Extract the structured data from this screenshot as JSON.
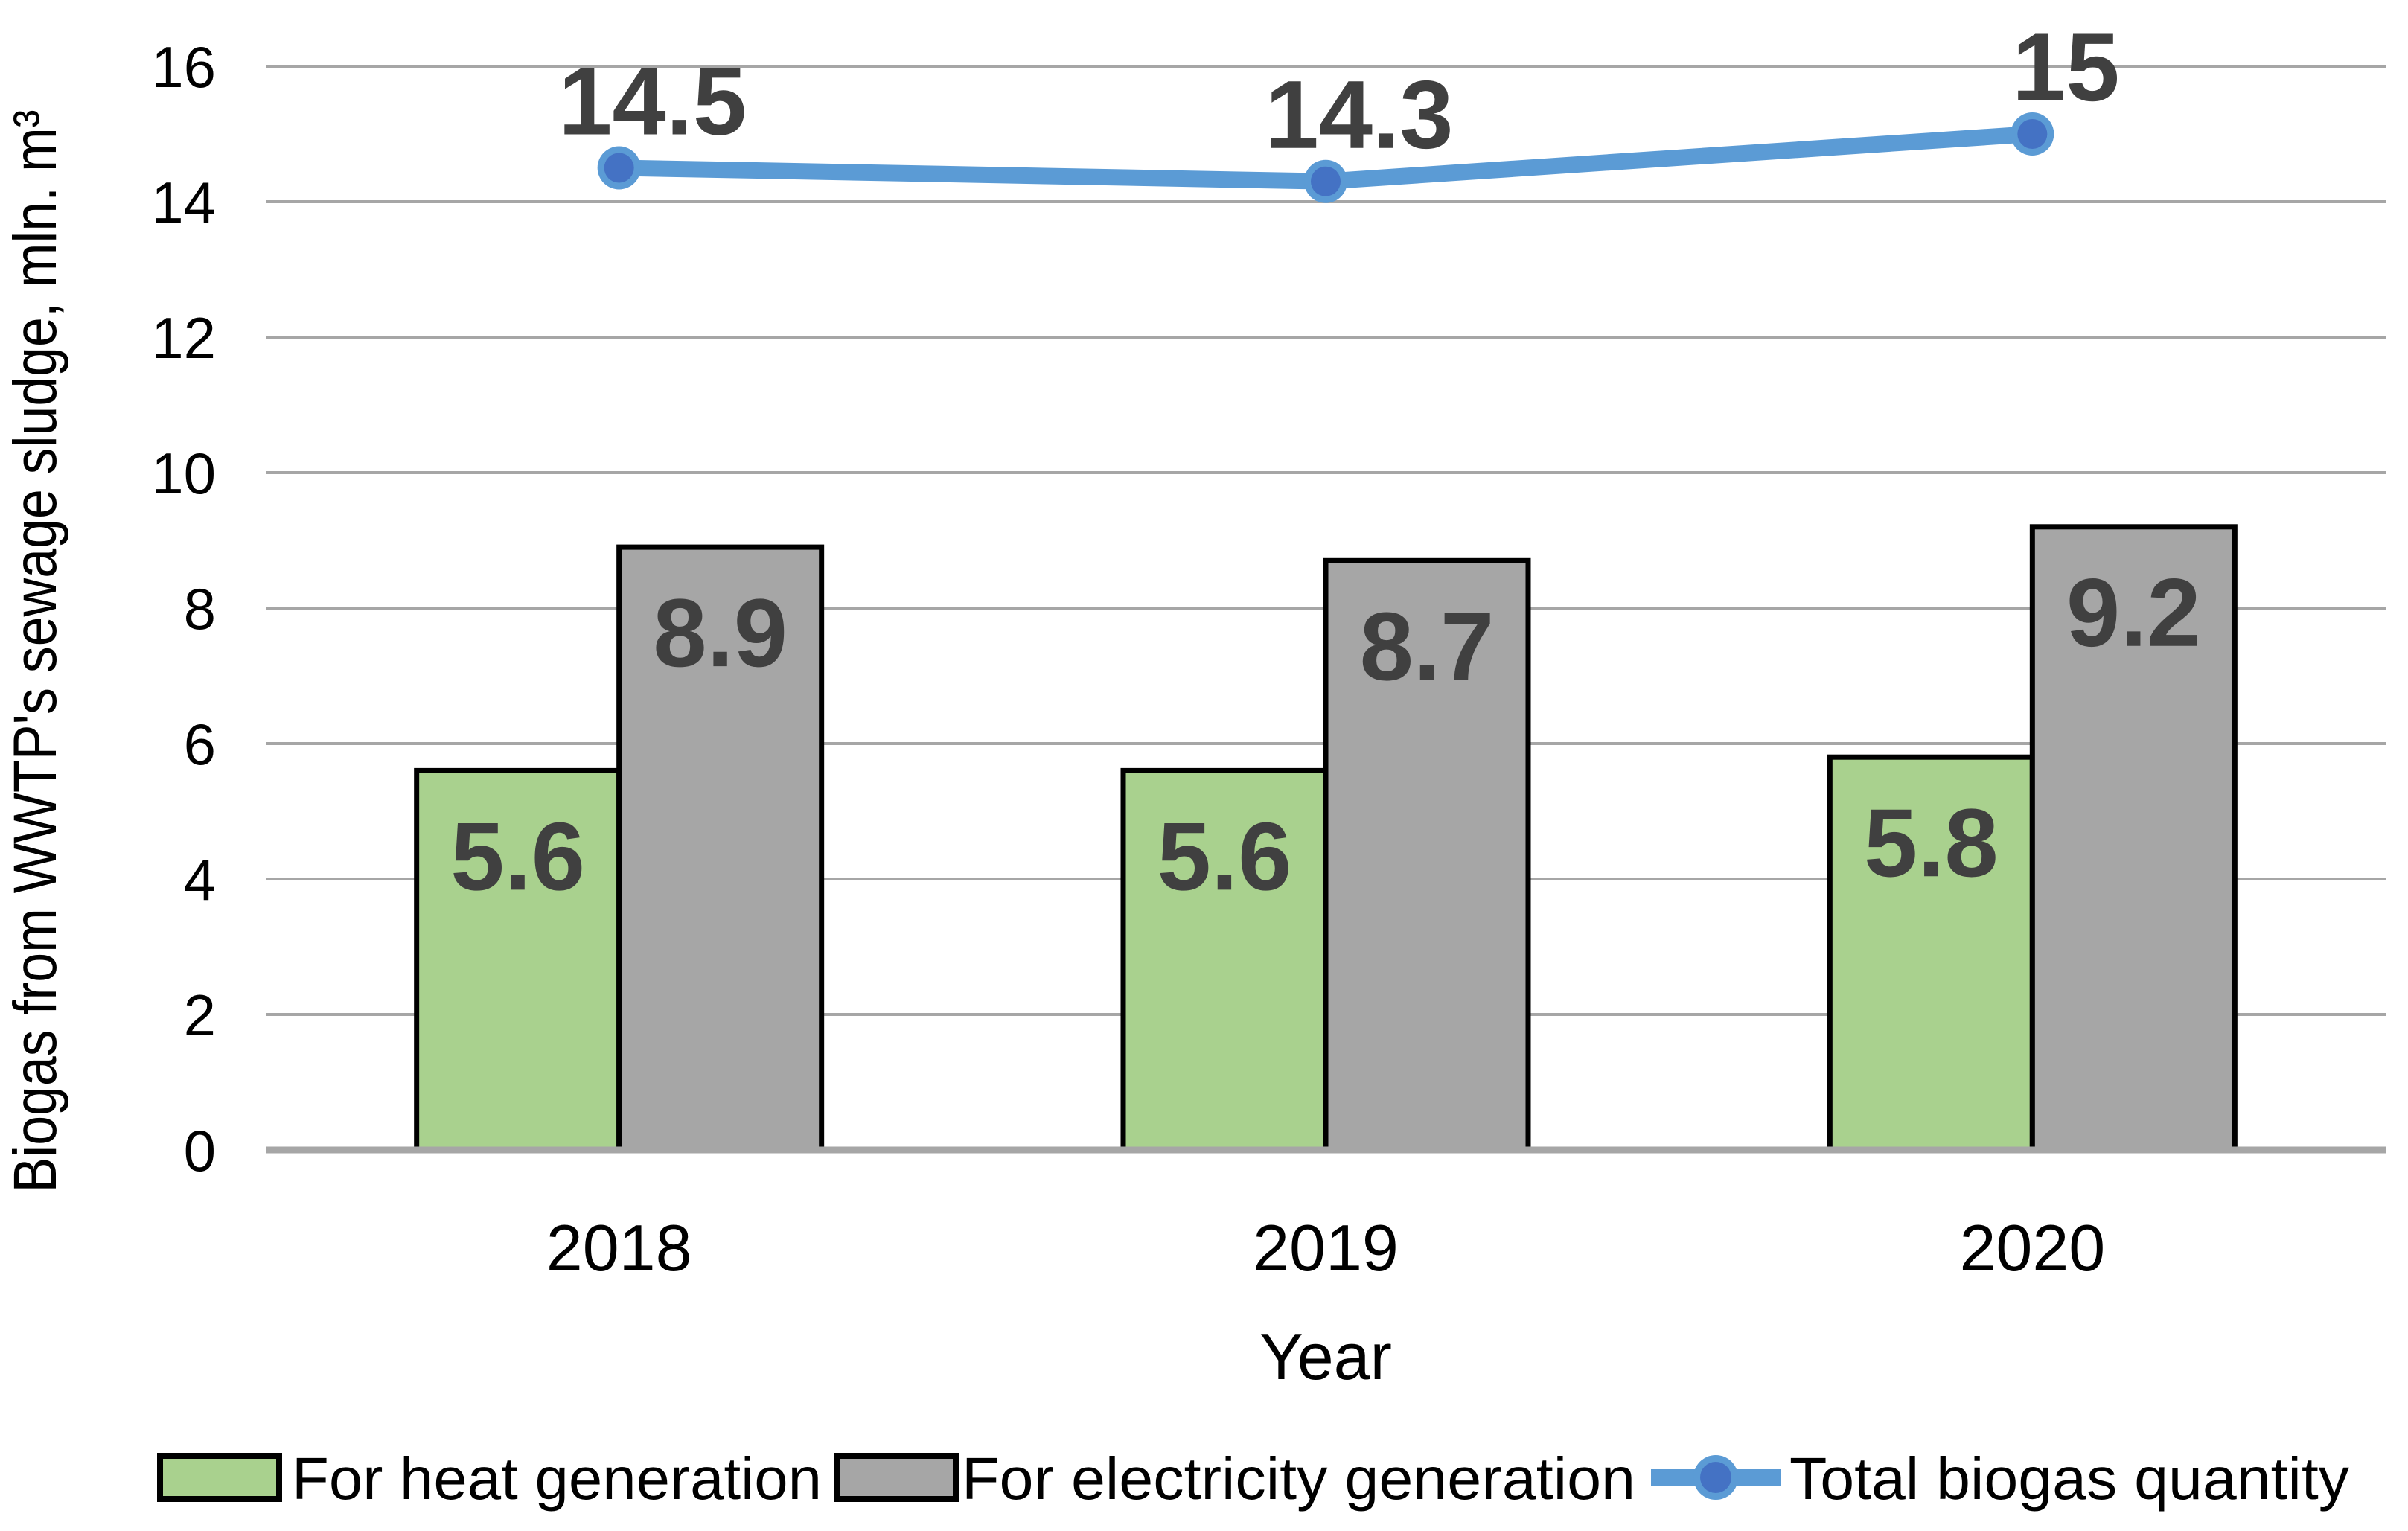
{
  "chart_data": {
    "type": "combo-bar-line",
    "categories": [
      "2018",
      "2019",
      "2020"
    ],
    "series": [
      {
        "name": "For heat generation",
        "type": "bar",
        "values": [
          5.6,
          5.6,
          5.8
        ],
        "labels": [
          "5.6",
          "5.6",
          "5.8"
        ],
        "fill": "#A9D18E",
        "stroke": "#000000"
      },
      {
        "name": "For electricity generation",
        "type": "bar",
        "values": [
          8.9,
          8.7,
          9.2
        ],
        "labels": [
          "8.9",
          "8.7",
          "9.2"
        ],
        "fill": "#A6A6A6",
        "stroke": "#000000"
      },
      {
        "name": "Total biogas quantity",
        "type": "line",
        "values": [
          14.5,
          14.3,
          15
        ],
        "labels": [
          "14.5",
          "14.3",
          "15"
        ],
        "line_color": "#5B9BD5",
        "marker_color": "#4472C4"
      }
    ],
    "title": "",
    "xlabel": "Year",
    "ylabel": "Biogas from WWTP's sewage sludge, mln. m³",
    "ylim": [
      0,
      16
    ],
    "yticks": [
      0,
      2,
      4,
      6,
      8,
      10,
      12,
      14,
      16
    ],
    "grid": true,
    "legend_position": "bottom",
    "colors": {
      "data_label": "#404040",
      "grid": "#A6A6A6",
      "axis": "#A6A6A6",
      "text": "#000000",
      "background": "#FFFFFF"
    }
  }
}
